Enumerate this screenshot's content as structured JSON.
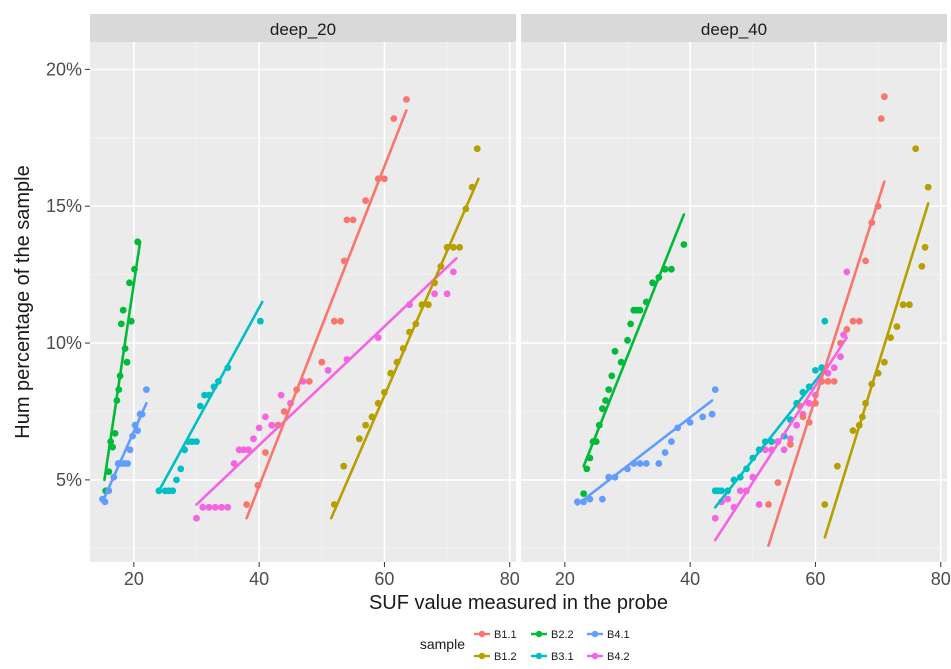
{
  "chart_data": {
    "type": "scatter",
    "xlabel": "SUF value measured in the probe",
    "ylabel": "Hum percentage of the sample",
    "panel_xlim": [
      13,
      81
    ],
    "ylim": [
      2.0,
      21.0
    ],
    "x_ticks": [
      20,
      40,
      60,
      80
    ],
    "y_ticks": [
      5,
      10,
      15,
      20
    ],
    "y_tick_labels": [
      "5%",
      "10%",
      "15%",
      "20%"
    ],
    "grid": true,
    "legend": {
      "title": "sample",
      "position": "bottom",
      "entries": [
        "B1.1",
        "B1.2",
        "B2.2",
        "B3.1",
        "B4.1",
        "B4.2"
      ]
    },
    "colors": {
      "B1.1": "#F8766D",
      "B1.2": "#B79F00",
      "B2.2": "#00BA38",
      "B3.1": "#00BFC4",
      "B4.1": "#619CFF",
      "B4.2": "#F564E3"
    },
    "panels": [
      {
        "strip": "deep_20",
        "series": [
          {
            "name": "B2.2",
            "x": [
              15.5,
              16.0,
              16.3,
              16.6,
              17.0,
              17.3,
              17.6,
              17.8,
              18.0,
              18.3,
              18.6,
              18.9,
              19.3,
              19.6,
              20.1,
              20.6
            ],
            "y": [
              4.6,
              5.3,
              6.4,
              6.2,
              6.7,
              7.9,
              8.3,
              8.8,
              10.7,
              11.2,
              9.8,
              9.3,
              12.2,
              10.8,
              12.7,
              13.7
            ],
            "fit": [
              [
                15.3,
                5.0
              ],
              [
                21.0,
                13.7
              ]
            ]
          },
          {
            "name": "B4.1",
            "x": [
              15.0,
              15.4,
              16.0,
              16.8,
              17.5,
              18.0,
              18.5,
              19.0,
              19.4,
              19.8,
              20.2,
              20.6,
              21.0,
              21.3,
              22.0
            ],
            "y": [
              4.3,
              4.2,
              4.6,
              5.1,
              5.6,
              5.6,
              5.6,
              5.6,
              6.1,
              6.6,
              7.0,
              6.8,
              7.4,
              7.4,
              8.3
            ],
            "fit": [
              [
                15.0,
                4.2
              ],
              [
                22.0,
                7.8
              ]
            ]
          },
          {
            "name": "B3.1",
            "x": [
              24.0,
              25.0,
              25.6,
              26.2,
              26.8,
              27.5,
              28.1,
              28.7,
              29.3,
              30.0,
              30.6,
              31.3,
              32.0,
              32.8,
              33.5,
              35.0,
              40.2
            ],
            "y": [
              4.6,
              4.6,
              4.6,
              4.6,
              5.0,
              5.4,
              6.1,
              6.4,
              6.4,
              6.4,
              7.7,
              8.1,
              8.1,
              8.4,
              8.6,
              9.1,
              10.8
            ],
            "fit": [
              [
                24.0,
                4.6
              ],
              [
                40.5,
                11.5
              ]
            ]
          },
          {
            "name": "B4.2",
            "x": [
              30.0,
              31.0,
              32.0,
              33.0,
              34.0,
              35.0,
              36.0,
              36.8,
              37.5,
              38.3,
              39.1,
              40.0,
              41.0,
              42.0,
              43.5,
              45.0,
              47.0,
              51.0,
              54.0,
              59.0,
              64.0,
              68.0,
              70.0,
              71.0
            ],
            "y": [
              3.6,
              4.0,
              4.0,
              4.0,
              4.0,
              4.0,
              5.6,
              6.1,
              6.1,
              6.1,
              6.5,
              6.9,
              7.3,
              7.0,
              8.1,
              7.8,
              8.6,
              9.0,
              9.4,
              10.2,
              11.4,
              11.8,
              11.8,
              12.6
            ],
            "fit": [
              [
                30.0,
                4.1
              ],
              [
                71.5,
                13.1
              ]
            ]
          },
          {
            "name": "B1.1",
            "x": [
              38.0,
              39.8,
              41.0,
              43.0,
              44.0,
              46.0,
              48.0,
              50.0,
              52.0,
              53.0,
              53.6,
              54.0,
              55.0,
              57.0,
              59.0,
              60.0,
              61.5,
              63.5
            ],
            "y": [
              4.1,
              4.8,
              6.0,
              7.0,
              7.5,
              8.3,
              8.6,
              9.3,
              10.8,
              10.8,
              13.0,
              14.5,
              14.5,
              15.2,
              16.0,
              16.0,
              18.2,
              18.9
            ],
            "fit": [
              [
                38.0,
                3.6
              ],
              [
                63.5,
                18.5
              ]
            ]
          },
          {
            "name": "B1.2",
            "x": [
              52.0,
              53.5,
              56.0,
              57.0,
              58.0,
              59.0,
              60.0,
              61.0,
              62.0,
              63.0,
              64.0,
              65.0,
              66.0,
              67.0,
              68.0,
              69.0,
              70.0,
              71.0,
              72.0,
              73.0,
              74.0,
              74.8
            ],
            "y": [
              4.1,
              5.5,
              6.5,
              7.0,
              7.3,
              7.8,
              8.2,
              8.9,
              9.3,
              9.8,
              10.4,
              10.7,
              11.4,
              11.4,
              12.2,
              12.8,
              13.5,
              13.5,
              13.5,
              14.9,
              15.7,
              17.1
            ],
            "fit": [
              [
                51.5,
                3.6
              ],
              [
                75.0,
                16.0
              ]
            ]
          }
        ]
      },
      {
        "strip": "deep_40",
        "series": [
          {
            "name": "B2.2",
            "x": [
              23.0,
              23.5,
              24.0,
              24.5,
              25.0,
              25.5,
              26.0,
              26.5,
              27.0,
              27.5,
              28.0,
              29.0,
              30.0,
              30.5,
              31.0,
              31.5,
              32.0,
              33.0,
              34.0,
              35.0,
              36.0,
              37.0,
              39.0
            ],
            "y": [
              4.5,
              5.4,
              5.8,
              6.4,
              6.4,
              7.0,
              7.6,
              7.9,
              8.3,
              8.8,
              9.7,
              9.3,
              10.1,
              10.7,
              11.2,
              11.2,
              11.2,
              11.5,
              12.2,
              12.4,
              12.7,
              12.7,
              13.6
            ],
            "fit": [
              [
                23.0,
                5.5
              ],
              [
                39.0,
                14.7
              ]
            ]
          },
          {
            "name": "B4.1",
            "x": [
              22.0,
              23.0,
              24.0,
              26.0,
              27.0,
              28.0,
              30.0,
              31.0,
              32.0,
              33.0,
              35.0,
              36.0,
              37.0,
              38.0,
              40.0,
              42.0,
              43.5,
              44.0
            ],
            "y": [
              4.2,
              4.2,
              4.3,
              4.3,
              5.1,
              5.1,
              5.4,
              5.6,
              5.6,
              5.6,
              5.6,
              6.0,
              6.4,
              6.9,
              7.1,
              7.3,
              7.4,
              8.3
            ],
            "fit": [
              [
                22.0,
                4.1
              ],
              [
                43.5,
                7.9
              ]
            ]
          },
          {
            "name": "B3.1",
            "x": [
              44.0,
              44.5,
              45.0,
              46.0,
              47.0,
              48.0,
              49.0,
              50.0,
              51.0,
              52.0,
              53.0,
              54.0,
              55.0,
              56.0,
              57.0,
              58.0,
              59.0,
              60.0,
              61.0,
              61.5
            ],
            "y": [
              4.6,
              4.6,
              4.6,
              4.6,
              5.0,
              5.1,
              5.4,
              5.8,
              6.1,
              6.4,
              6.4,
              6.4,
              6.6,
              7.2,
              7.8,
              8.2,
              8.4,
              9.0,
              9.1,
              10.8
            ],
            "fit": [
              [
                44.0,
                4.0
              ],
              [
                62.0,
                9.2
              ]
            ]
          },
          {
            "name": "B4.2",
            "x": [
              44.0,
              45.0,
              46.0,
              47.0,
              48.0,
              49.0,
              50.0,
              51.0,
              52.0,
              53.0,
              54.0,
              55.0,
              56.0,
              57.0,
              58.0,
              59.0,
              60.0,
              61.0,
              62.0,
              63.0,
              64.0,
              64.5,
              65.0
            ],
            "y": [
              3.6,
              4.2,
              4.3,
              4.0,
              4.6,
              4.6,
              5.1,
              4.1,
              6.1,
              6.1,
              6.4,
              6.1,
              6.5,
              7.0,
              7.4,
              7.8,
              8.1,
              8.6,
              8.9,
              9.1,
              9.5,
              10.3,
              12.6
            ],
            "fit": [
              [
                44.0,
                2.8
              ],
              [
                65.0,
                10.2
              ]
            ]
          },
          {
            "name": "B1.1",
            "x": [
              52.5,
              54.0,
              56.0,
              57.5,
              58.0,
              59.0,
              60.0,
              61.0,
              62.0,
              63.0,
              64.0,
              65.0,
              66.0,
              67.0,
              68.0,
              69.0,
              70.0,
              70.5,
              71.0
            ],
            "y": [
              4.1,
              4.9,
              6.3,
              7.7,
              7.3,
              7.1,
              7.8,
              8.6,
              8.6,
              8.6,
              10.0,
              10.5,
              10.8,
              10.8,
              13.0,
              14.4,
              15.0,
              18.2,
              19.0
            ],
            "fit": [
              [
                52.5,
                2.6
              ],
              [
                71.0,
                15.9
              ]
            ]
          },
          {
            "name": "B1.2",
            "x": [
              61.5,
              63.5,
              66.0,
              67.0,
              67.5,
              68.0,
              69.0,
              70.0,
              71.0,
              72.0,
              73.0,
              74.0,
              75.0,
              76.0,
              77.0,
              77.5,
              78.0
            ],
            "y": [
              4.1,
              5.5,
              6.8,
              7.0,
              7.3,
              7.8,
              8.5,
              8.9,
              9.3,
              10.2,
              10.6,
              11.4,
              11.4,
              17.1,
              12.8,
              13.5,
              15.7
            ],
            "fit": [
              [
                61.5,
                2.9
              ],
              [
                78.0,
                15.1
              ]
            ]
          }
        ]
      }
    ]
  }
}
